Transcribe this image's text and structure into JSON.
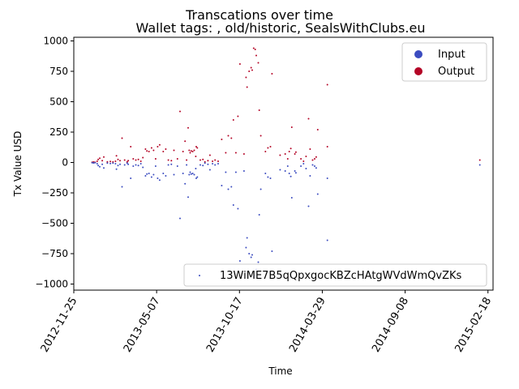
{
  "chart_data": {
    "type": "scatter",
    "title": "Transcations over time",
    "subtitle": "Wallet tags: , old/historic, SealsWithClubs.eu",
    "xlabel": "Time",
    "ylabel": "Tx Value USD",
    "xlim": [
      "2012-11-25",
      "2015-02-28"
    ],
    "ylim": [
      -1050,
      1030
    ],
    "x_ticks": [
      "2012-11-25",
      "2013-05-07",
      "2013-10-17",
      "2014-03-29",
      "2014-09-08",
      "2015-02-18"
    ],
    "y_ticks": [
      -1000,
      -750,
      -500,
      -250,
      0,
      250,
      500,
      750,
      1000
    ],
    "grid": false,
    "legend_top_right": [
      {
        "name": "Input",
        "color": "#3b4cc0"
      },
      {
        "name": "Output",
        "color": "#b40426"
      }
    ],
    "legend_bottom_right": {
      "name": "13WiME7B5qQpxgocKBZcHAtgWVdWmQvZKs",
      "color": "#3b4cc0"
    },
    "series": [
      {
        "name": "Output",
        "color": "#b40426",
        "points": [
          [
            "2012-12-31",
            2
          ],
          [
            "2013-01-03",
            4
          ],
          [
            "2013-01-06",
            1
          ],
          [
            "2013-01-10",
            10
          ],
          [
            "2013-01-12",
            25
          ],
          [
            "2013-01-15",
            35
          ],
          [
            "2013-01-20",
            15
          ],
          [
            "2013-01-23",
            45
          ],
          [
            "2013-01-30",
            5
          ],
          [
            "2013-02-05",
            8
          ],
          [
            "2013-02-10",
            5
          ],
          [
            "2013-02-15",
            10
          ],
          [
            "2013-02-17",
            55
          ],
          [
            "2013-02-20",
            25
          ],
          [
            "2013-02-24",
            15
          ],
          [
            "2013-02-28",
            200
          ],
          [
            "2013-03-05",
            20
          ],
          [
            "2013-03-10",
            5
          ],
          [
            "2013-03-12",
            15
          ],
          [
            "2013-03-17",
            130
          ],
          [
            "2013-03-22",
            30
          ],
          [
            "2013-03-27",
            20
          ],
          [
            "2013-04-01",
            25
          ],
          [
            "2013-04-06",
            10
          ],
          [
            "2013-04-10",
            40
          ],
          [
            "2013-04-15",
            110
          ],
          [
            "2013-04-18",
            95
          ],
          [
            "2013-04-22",
            90
          ],
          [
            "2013-04-27",
            120
          ],
          [
            "2013-05-01",
            100
          ],
          [
            "2013-05-05",
            30
          ],
          [
            "2013-05-09",
            130
          ],
          [
            "2013-05-13",
            145
          ],
          [
            "2013-05-20",
            90
          ],
          [
            "2013-05-25",
            110
          ],
          [
            "2013-05-30",
            20
          ],
          [
            "2013-06-05",
            15
          ],
          [
            "2013-06-10",
            100
          ],
          [
            "2013-06-17",
            30
          ],
          [
            "2013-06-22",
            420
          ],
          [
            "2013-06-28",
            90
          ],
          [
            "2013-07-02",
            175
          ],
          [
            "2013-07-05",
            20
          ],
          [
            "2013-07-08",
            285
          ],
          [
            "2013-07-10",
            100
          ],
          [
            "2013-07-12",
            80
          ],
          [
            "2013-07-14",
            95
          ],
          [
            "2013-07-17",
            90
          ],
          [
            "2013-07-20",
            100
          ],
          [
            "2013-07-23",
            50
          ],
          [
            "2013-07-24",
            130
          ],
          [
            "2013-07-26",
            120
          ],
          [
            "2013-08-01",
            20
          ],
          [
            "2013-08-06",
            25
          ],
          [
            "2013-08-10",
            5
          ],
          [
            "2013-08-16",
            15
          ],
          [
            "2013-08-20",
            60
          ],
          [
            "2013-08-25",
            10
          ],
          [
            "2013-08-30",
            20
          ],
          [
            "2013-09-05",
            10
          ],
          [
            "2013-09-12",
            190
          ],
          [
            "2013-09-20",
            80
          ],
          [
            "2013-09-25",
            220
          ],
          [
            "2013-10-01",
            200
          ],
          [
            "2013-10-05",
            350
          ],
          [
            "2013-10-10",
            80
          ],
          [
            "2013-10-14",
            380
          ],
          [
            "2013-10-18",
            810
          ],
          [
            "2013-10-26",
            70
          ],
          [
            "2013-10-30",
            700
          ],
          [
            "2013-11-01",
            620
          ],
          [
            "2013-11-05",
            750
          ],
          [
            "2013-11-09",
            780
          ],
          [
            "2013-11-11",
            760
          ],
          [
            "2013-11-14",
            940
          ],
          [
            "2013-11-17",
            930
          ],
          [
            "2013-11-19",
            880
          ],
          [
            "2013-11-23",
            820
          ],
          [
            "2013-11-25",
            430
          ],
          [
            "2013-11-28",
            220
          ],
          [
            "2013-12-07",
            90
          ],
          [
            "2013-12-12",
            120
          ],
          [
            "2013-12-17",
            130
          ],
          [
            "2013-12-20",
            730
          ],
          [
            "2014-01-05",
            60
          ],
          [
            "2014-01-15",
            70
          ],
          [
            "2014-01-20",
            30
          ],
          [
            "2014-01-23",
            90
          ],
          [
            "2014-01-26",
            115
          ],
          [
            "2014-01-28",
            290
          ],
          [
            "2014-02-03",
            70
          ],
          [
            "2014-02-05",
            85
          ],
          [
            "2014-02-15",
            30
          ],
          [
            "2014-02-20",
            10
          ],
          [
            "2014-02-25",
            50
          ],
          [
            "2014-03-02",
            360
          ],
          [
            "2014-03-05",
            110
          ],
          [
            "2014-03-10",
            20
          ],
          [
            "2014-03-14",
            30
          ],
          [
            "2014-03-17",
            45
          ],
          [
            "2014-03-20",
            270
          ],
          [
            "2014-04-08",
            640
          ],
          [
            "2014-04-08",
            130
          ],
          [
            "2015-02-02",
            20
          ]
        ]
      },
      {
        "name": "Input",
        "color": "#3b4cc0",
        "points": [
          [
            "2012-12-31",
            -2
          ],
          [
            "2013-01-03",
            -4
          ],
          [
            "2013-01-06",
            -1
          ],
          [
            "2013-01-10",
            -10
          ],
          [
            "2013-01-12",
            -25
          ],
          [
            "2013-01-15",
            -35
          ],
          [
            "2013-01-20",
            -15
          ],
          [
            "2013-01-23",
            -45
          ],
          [
            "2013-01-30",
            -5
          ],
          [
            "2013-02-05",
            -8
          ],
          [
            "2013-02-10",
            -5
          ],
          [
            "2013-02-15",
            -10
          ],
          [
            "2013-02-17",
            -55
          ],
          [
            "2013-02-20",
            -25
          ],
          [
            "2013-02-24",
            -15
          ],
          [
            "2013-02-28",
            -200
          ],
          [
            "2013-03-05",
            -20
          ],
          [
            "2013-03-10",
            -5
          ],
          [
            "2013-03-12",
            -15
          ],
          [
            "2013-03-17",
            -130
          ],
          [
            "2013-03-22",
            -30
          ],
          [
            "2013-03-27",
            -20
          ],
          [
            "2013-04-01",
            -25
          ],
          [
            "2013-04-06",
            -10
          ],
          [
            "2013-04-10",
            -40
          ],
          [
            "2013-04-15",
            -110
          ],
          [
            "2013-04-18",
            -95
          ],
          [
            "2013-04-22",
            -90
          ],
          [
            "2013-04-27",
            -120
          ],
          [
            "2013-05-01",
            -100
          ],
          [
            "2013-05-05",
            -30
          ],
          [
            "2013-05-09",
            -130
          ],
          [
            "2013-05-13",
            -145
          ],
          [
            "2013-05-20",
            -90
          ],
          [
            "2013-05-25",
            -110
          ],
          [
            "2013-05-30",
            -20
          ],
          [
            "2013-06-05",
            -15
          ],
          [
            "2013-06-10",
            -100
          ],
          [
            "2013-06-17",
            -30
          ],
          [
            "2013-06-22",
            -460
          ],
          [
            "2013-06-28",
            -90
          ],
          [
            "2013-07-02",
            -175
          ],
          [
            "2013-07-05",
            -20
          ],
          [
            "2013-07-08",
            -285
          ],
          [
            "2013-07-10",
            -100
          ],
          [
            "2013-07-12",
            -80
          ],
          [
            "2013-07-14",
            -95
          ],
          [
            "2013-07-17",
            -90
          ],
          [
            "2013-07-20",
            -100
          ],
          [
            "2013-07-23",
            -50
          ],
          [
            "2013-07-24",
            -130
          ],
          [
            "2013-07-26",
            -120
          ],
          [
            "2013-08-01",
            -20
          ],
          [
            "2013-08-06",
            -25
          ],
          [
            "2013-08-10",
            -5
          ],
          [
            "2013-08-16",
            -15
          ],
          [
            "2013-08-20",
            -60
          ],
          [
            "2013-08-25",
            -10
          ],
          [
            "2013-08-30",
            -20
          ],
          [
            "2013-09-05",
            -10
          ],
          [
            "2013-09-12",
            -190
          ],
          [
            "2013-09-20",
            -80
          ],
          [
            "2013-09-25",
            -220
          ],
          [
            "2013-10-01",
            -200
          ],
          [
            "2013-10-05",
            -350
          ],
          [
            "2013-10-10",
            -80
          ],
          [
            "2013-10-14",
            -380
          ],
          [
            "2013-10-18",
            -810
          ],
          [
            "2013-10-26",
            -70
          ],
          [
            "2013-10-30",
            -700
          ],
          [
            "2013-11-01",
            -620
          ],
          [
            "2013-11-05",
            -750
          ],
          [
            "2013-11-09",
            -780
          ],
          [
            "2013-11-11",
            -760
          ],
          [
            "2013-11-14",
            -940
          ],
          [
            "2013-11-17",
            -930
          ],
          [
            "2013-11-19",
            -880
          ],
          [
            "2013-11-23",
            -820
          ],
          [
            "2013-11-25",
            -430
          ],
          [
            "2013-11-28",
            -220
          ],
          [
            "2013-12-07",
            -90
          ],
          [
            "2013-12-12",
            -120
          ],
          [
            "2013-12-17",
            -130
          ],
          [
            "2013-12-20",
            -730
          ],
          [
            "2014-01-05",
            -60
          ],
          [
            "2014-01-15",
            -70
          ],
          [
            "2014-01-20",
            -30
          ],
          [
            "2014-01-23",
            -90
          ],
          [
            "2014-01-26",
            -115
          ],
          [
            "2014-01-28",
            -290
          ],
          [
            "2014-02-03",
            -70
          ],
          [
            "2014-02-05",
            -85
          ],
          [
            "2014-02-15",
            -30
          ],
          [
            "2014-02-20",
            -10
          ],
          [
            "2014-02-25",
            -50
          ],
          [
            "2014-03-02",
            -360
          ],
          [
            "2014-03-05",
            -110
          ],
          [
            "2014-03-10",
            -20
          ],
          [
            "2014-03-14",
            -30
          ],
          [
            "2014-03-17",
            -45
          ],
          [
            "2014-03-20",
            -260
          ],
          [
            "2014-04-08",
            -640
          ],
          [
            "2014-04-08",
            -130
          ],
          [
            "2015-02-02",
            -20
          ]
        ]
      }
    ]
  }
}
